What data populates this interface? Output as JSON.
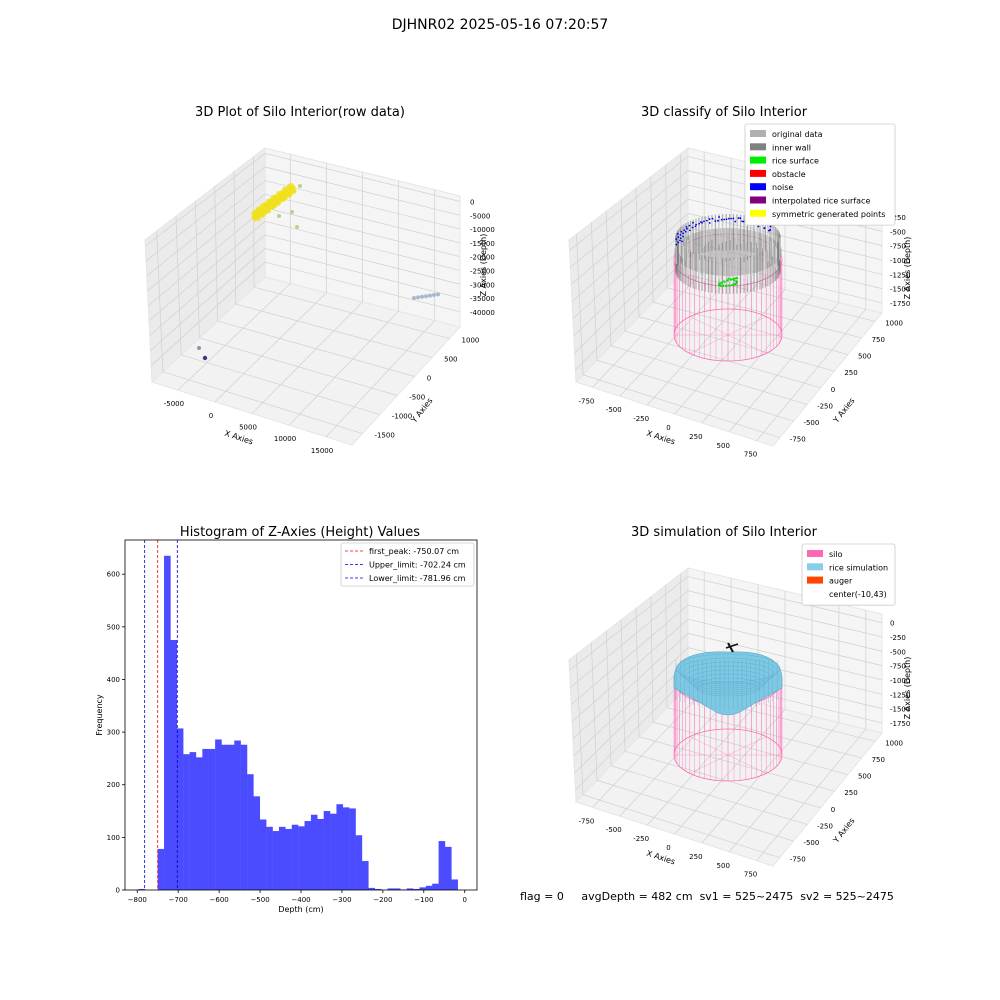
{
  "figure": {
    "suptitle": "DJHNR02 2025-05-16 07:20:57"
  },
  "panels": {
    "raw": {
      "title": "3D Plot of Silo Interior(row data)",
      "xlabel": "X Axies",
      "ylabel": "Y Axies",
      "zlabel": "Z Axies (Depth)",
      "xticks": [
        "-5000",
        "0",
        "5000",
        "10000",
        "15000"
      ],
      "yticks": [
        "-1500",
        "-1000",
        "-500",
        "0",
        "500",
        "1000"
      ],
      "zticks": [
        "0",
        "-5000",
        "-10000",
        "-15000",
        "-20000",
        "-25000",
        "-30000",
        "-35000",
        "-40000"
      ]
    },
    "classify": {
      "title": "3D classify of Silo Interior",
      "xlabel": "X Axies",
      "ylabel": "Y Axies",
      "zlabel": "Z Axies (Depth)",
      "xticks": [
        "-750",
        "-500",
        "-250",
        "0",
        "250",
        "500",
        "750"
      ],
      "yticks": [
        "-750",
        "-500",
        "-250",
        "0",
        "250",
        "500",
        "750",
        "1000"
      ],
      "zticks": [
        "0",
        "-250",
        "-500",
        "-750",
        "-1000",
        "-1250",
        "-1500",
        "-1750"
      ],
      "legend": [
        {
          "label": "original data",
          "color": "#b0b0b0"
        },
        {
          "label": "inner wall",
          "color": "#808080"
        },
        {
          "label": "rice surface",
          "color": "#00ee00"
        },
        {
          "label": "obstacle",
          "color": "#ff0000"
        },
        {
          "label": "noise",
          "color": "#0000ff"
        },
        {
          "label": "interpolated rice surface",
          "color": "#800080"
        },
        {
          "label": "symmetric generated points",
          "color": "#ffff00"
        }
      ]
    },
    "simulation": {
      "title": "3D simulation of Silo Interior",
      "xlabel": "X Axies",
      "ylabel": "Y Axies",
      "zlabel": "Z Axies (Depth)",
      "xticks": [
        "-750",
        "-500",
        "-250",
        "0",
        "250",
        "500",
        "750"
      ],
      "yticks": [
        "-750",
        "-500",
        "-250",
        "0",
        "250",
        "500",
        "750",
        "1000"
      ],
      "zticks": [
        "0",
        "-250",
        "-500",
        "-750",
        "-1000",
        "-1250",
        "-1500",
        "-1750"
      ],
      "legend": [
        {
          "label": "silo",
          "color": "#ff69b4"
        },
        {
          "label": "rice simulation",
          "color": "#87ceeb"
        },
        {
          "label": "auger",
          "color": "#ff4500"
        },
        {
          "label": "center(-10,43)",
          "color": "#ffffff"
        }
      ]
    }
  },
  "status": {
    "flag": "flag = 0",
    "avg_depth": "avgDepth = 482 cm",
    "sv1": "sv1 = 525~2475",
    "sv2": "sv2 = 525~2475"
  },
  "colors": {
    "hist_bar": "#4b4bff",
    "first_peak_line": "#ff0000",
    "limit_lines": "#0000cc",
    "silo_wire": "#ff69b4",
    "rice_surface": "#7ec8e3",
    "raw_points": "#f0e020"
  },
  "chart_data": {
    "type": "bar",
    "title": "Histogram of Z-Axies (Height) Values",
    "xlabel": "Depth (cm)",
    "ylabel": "Frequency",
    "xlim": [
      -830,
      30
    ],
    "ylim": [
      0,
      665
    ],
    "xticks": [
      -800,
      -700,
      -600,
      -500,
      -400,
      -300,
      -200,
      -100,
      0
    ],
    "yticks": [
      0,
      100,
      200,
      300,
      400,
      500,
      600
    ],
    "bin_width": 15.6,
    "bin_start": -797,
    "values": [
      2,
      0,
      0,
      78,
      635,
      475,
      307,
      258,
      262,
      252,
      268,
      268,
      286,
      276,
      276,
      284,
      276,
      220,
      178,
      134,
      120,
      112,
      120,
      116,
      124,
      121,
      131,
      143,
      135,
      150,
      145,
      163,
      157,
      155,
      104,
      55,
      4,
      2,
      0,
      3,
      3,
      1,
      3,
      2,
      5,
      8,
      12,
      93,
      82,
      20
    ],
    "lines": [
      {
        "label": "first_peak: -750.07 cm",
        "x": -750.07,
        "color": "#ff0000"
      },
      {
        "label": "Upper_limit: -702.24 cm",
        "x": -702.24,
        "color": "#0000cc"
      },
      {
        "label": "Lower_limit: -781.96 cm",
        "x": -781.96,
        "color": "#0000cc"
      }
    ],
    "legend_position": "top-right",
    "grid": false
  }
}
